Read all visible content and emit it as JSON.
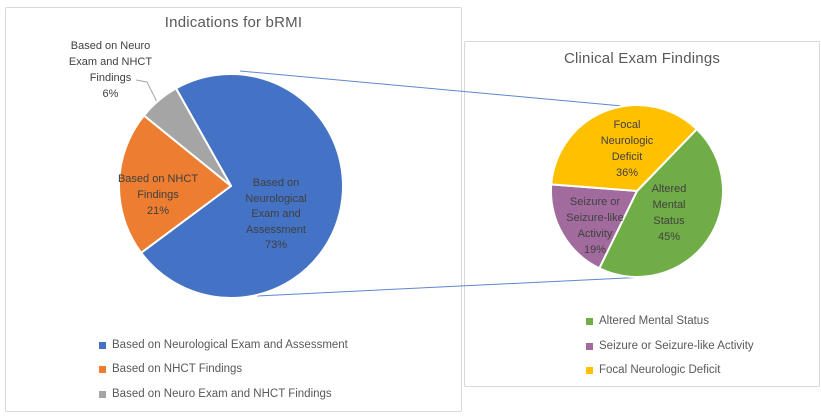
{
  "chart_data": [
    {
      "type": "pie",
      "title": "Indications for bRMI",
      "labels": [
        "Based on Neurological Exam and Assessment",
        "Based on NHCT Findings",
        "Based on Neuro Exam and NHCT Findings"
      ],
      "values": [
        73,
        21,
        6
      ],
      "unit": "%",
      "colors": [
        "#4472C4",
        "#ED7D31",
        "#A5A5A5"
      ],
      "start_angle_deg": 330.6,
      "legend_position": "bottom-left",
      "slice_labels": [
        "Based on\nNeurological\nExam and\nAssessment\n73%",
        "Based on NHCT\nFindings\n21%",
        "Based on Neuro\nExam and NHCT\nFindings\n6%"
      ]
    },
    {
      "type": "pie",
      "title": "Clinical Exam Findings",
      "labels": [
        "Altered Mental Status",
        "Seizure or Seizure-like Activity",
        "Focal Neurologic Deficit"
      ],
      "values": [
        45,
        19,
        36
      ],
      "unit": "%",
      "colors": [
        "#70AD47",
        "#A26B9E",
        "#FFC000"
      ],
      "start_angle_deg": 44,
      "legend_position": "bottom-left",
      "slice_labels": [
        "Altered\nMental\nStatus\n45%",
        "Seizure or\nSeizure-like\nActivity\n19%",
        "Focal\nNeurologic\nDeficit\n36%"
      ]
    }
  ],
  "connector_color": "#4472C4",
  "leader_color": "#A6A6A6"
}
